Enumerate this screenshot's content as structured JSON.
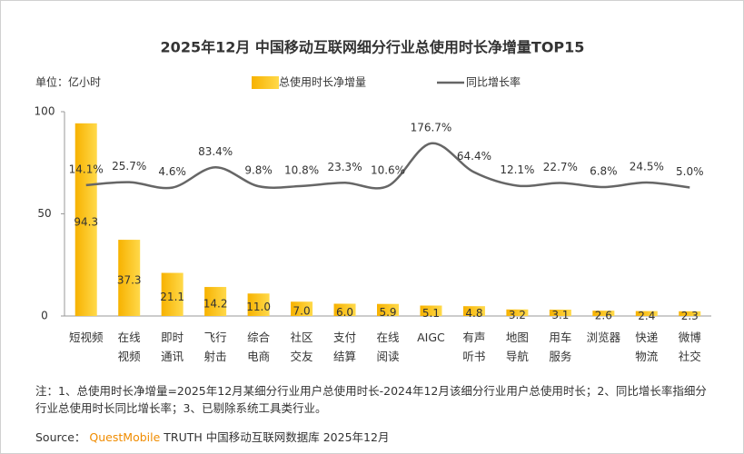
{
  "chart_data": {
    "type": "bar_line",
    "title": "2025年12月 中国移动互联网细分行业总使用时长净增量TOP15",
    "unit": "单位：亿小时",
    "categories": [
      "短视频",
      "在线\n视频",
      "即时\n通讯",
      "飞行\n射击",
      "综合\n电商",
      "社区\n交友",
      "支付\n结算",
      "在线\n阅读",
      "AIGC",
      "有声\n听书",
      "地图\n导航",
      "用车\n服务",
      "浏览器",
      "快递\n物流",
      "微博\n社交"
    ],
    "series": [
      {
        "name": "总使用时长净增量",
        "type": "bar",
        "color": "#f9bd0c",
        "values": [
          94.3,
          37.3,
          21.1,
          14.2,
          11.0,
          7.0,
          6.0,
          5.9,
          5.1,
          4.8,
          3.2,
          3.1,
          2.6,
          2.4,
          2.3
        ],
        "value_labels": [
          "94.3",
          "37.3",
          "21.1",
          "14.2",
          "11.0",
          "7.0",
          "6.0",
          "5.9",
          "5.1",
          "4.8",
          "3.2",
          "3.1",
          "2.6",
          "2.4",
          "2.3"
        ]
      },
      {
        "name": "同比增长率",
        "type": "line",
        "axis": "y2",
        "color": "#666666",
        "values": [
          14.1,
          25.7,
          4.6,
          83.4,
          9.8,
          10.8,
          23.3,
          10.6,
          176.7,
          64.4,
          12.1,
          22.7,
          6.8,
          24.5,
          5.0
        ],
        "value_labels": [
          "14.1%",
          "25.7%",
          "4.6%",
          "83.4%",
          "9.8%",
          "10.8%",
          "23.3%",
          "10.6%",
          "176.7%",
          "64.4%",
          "12.1%",
          "22.7%",
          "6.8%",
          "24.5%",
          "5.0%"
        ]
      }
    ],
    "ylim": [
      0,
      100
    ],
    "yticks": [
      0,
      50,
      100
    ],
    "y2lim": [
      -495,
      300
    ],
    "note": "注：1、总使用时长净增量=2025年12月某细分行业用户总使用时长-2024年12月该细分行业用户总使用时长；2、同比增长率指细分行业总使用时长同比增长率；3、已剔除系统工具类行业。",
    "source": {
      "label": "Source：",
      "brand": "QuestMobile",
      "text": "TRUTH 中国移动互联网数据库 2025年12月"
    }
  }
}
